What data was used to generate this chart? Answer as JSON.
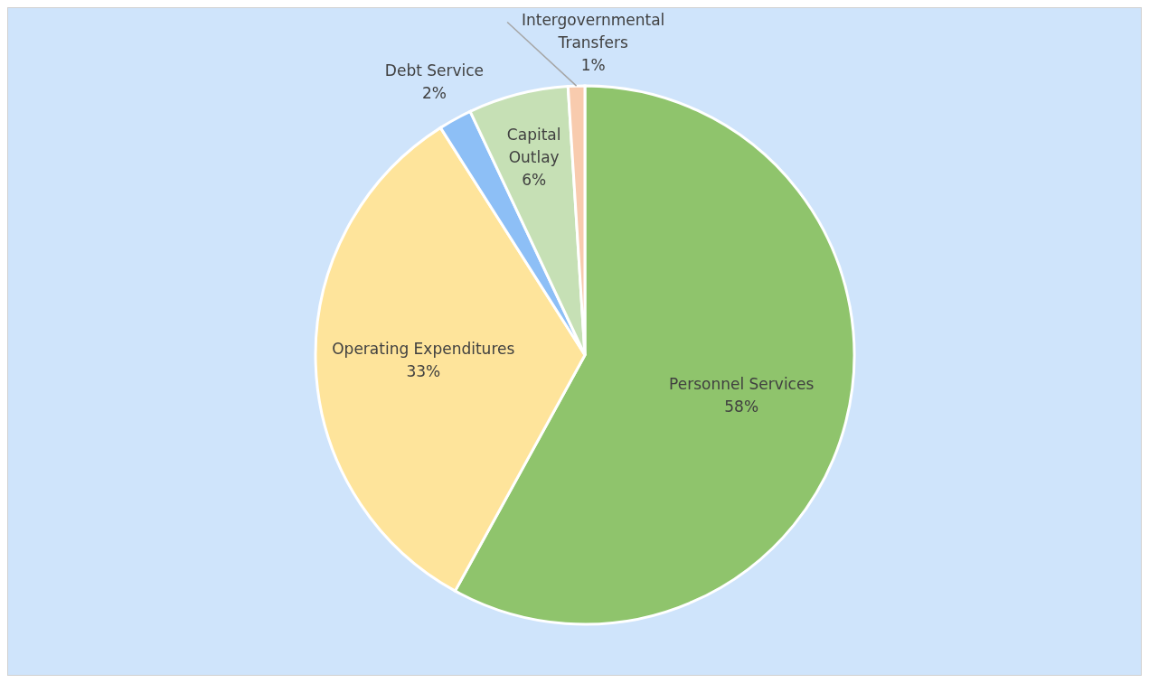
{
  "chart_data": {
    "type": "pie",
    "categories": [
      "Personnel Services",
      "Operating Expenditures",
      "Debt Service",
      "Capital Outlay",
      "Intergovernmental Transfers"
    ],
    "values": [
      58,
      33,
      2,
      6,
      1
    ],
    "value_labels": [
      "58%",
      "33%",
      "2%",
      "6%",
      "1%"
    ],
    "colors": [
      "#8fc46c",
      "#fee49b",
      "#8dbff6",
      "#c6e0b5",
      "#f8cbae"
    ],
    "legend": false
  }
}
